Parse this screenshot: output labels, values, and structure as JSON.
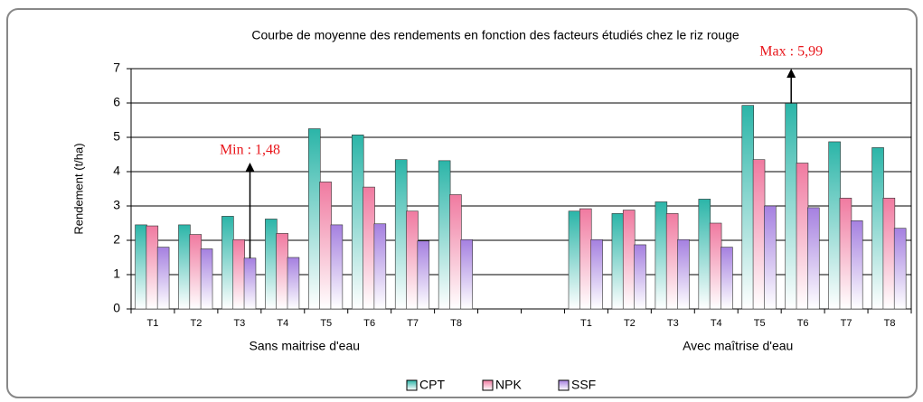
{
  "chart_data": {
    "type": "bar",
    "title": "Courbe de moyenne des rendements en fonction des facteurs étudiés chez le riz rouge",
    "y_label": "Rendement (t/ha)",
    "categories": [
      "T1",
      "T2",
      "T3",
      "T4",
      "T5",
      "T6",
      "T7",
      "T8",
      null,
      null,
      "T1",
      "T2",
      "T3",
      "T4",
      "T5",
      "T6",
      "T7",
      "T8"
    ],
    "group_labels": [
      "Sans maitrise d'eau",
      "Avec maîtrise d'eau"
    ],
    "series": [
      {
        "name": "CPT",
        "color": "#2bb5a8",
        "values": [
          2.45,
          2.45,
          2.7,
          2.62,
          5.25,
          5.07,
          4.35,
          4.32,
          null,
          null,
          2.85,
          2.78,
          3.12,
          3.2,
          5.93,
          5.99,
          4.87,
          4.7
        ]
      },
      {
        "name": "NPK",
        "color": "#f07aa0",
        "values": [
          2.42,
          2.17,
          2.02,
          2.2,
          3.7,
          3.55,
          2.85,
          3.33,
          null,
          null,
          2.92,
          2.88,
          2.78,
          2.5,
          4.35,
          4.25,
          3.23,
          3.23
        ]
      },
      {
        "name": "SSF",
        "color": "#a580e0",
        "values": [
          1.8,
          1.75,
          1.48,
          1.5,
          2.45,
          2.48,
          1.98,
          2.02,
          null,
          null,
          2.02,
          1.87,
          2.02,
          1.8,
          3.0,
          2.95,
          2.57,
          2.35
        ]
      }
    ],
    "annotations": [
      "Min : 1,48",
      "Max : 5,99"
    ],
    "ylim": [
      0,
      7
    ],
    "yticks": [
      0,
      1,
      2,
      3,
      4,
      5,
      6,
      7
    ],
    "grid": true
  }
}
